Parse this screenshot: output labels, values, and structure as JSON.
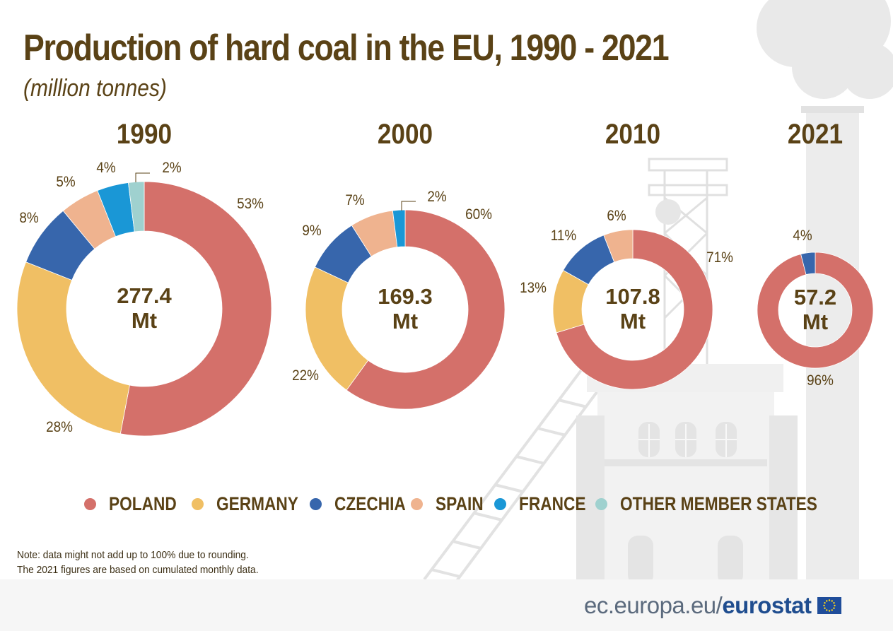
{
  "title": "Production of hard coal in the EU, 1990 - 2021",
  "subtitle": "(million tonnes)",
  "chart_data": {
    "type": "pie",
    "title": "Production of hard coal in the EU, 1990 - 2021",
    "subtitle": "(million tonnes)",
    "categories": [
      "POLAND",
      "GERMANY",
      "CZECHIA",
      "SPAIN",
      "FRANCE",
      "OTHER MEMBER STATES"
    ],
    "colors": [
      "#d4706a",
      "#f0bf64",
      "#3766ac",
      "#efb38f",
      "#1a97d6",
      "#9fd1cf"
    ],
    "charts": [
      {
        "year": "1990",
        "total": "277.4",
        "unit": "Mt",
        "values": [
          53,
          28,
          8,
          5,
          4,
          2
        ],
        "labels": [
          "53%",
          "28%",
          "8%",
          "5%",
          "4%",
          "2%"
        ]
      },
      {
        "year": "2000",
        "total": "169.3",
        "unit": "Mt",
        "values": [
          60,
          22,
          9,
          7,
          2,
          0
        ],
        "labels": [
          "60%",
          "22%",
          "9%",
          "7%",
          "2%",
          ""
        ]
      },
      {
        "year": "2010",
        "total": "107.8",
        "unit": "Mt",
        "values": [
          71,
          13,
          11,
          6,
          0,
          0
        ],
        "labels": [
          "71%",
          "13%",
          "11%",
          "6%",
          "",
          ""
        ]
      },
      {
        "year": "2021",
        "total": "57.2",
        "unit": "Mt",
        "values": [
          96,
          0,
          4,
          0,
          0,
          0
        ],
        "labels": [
          "96%",
          "",
          "4%",
          "",
          "",
          ""
        ]
      }
    ]
  },
  "legend": [
    "POLAND",
    "GERMANY",
    "CZECHIA",
    "SPAIN",
    "FRANCE",
    "OTHER MEMBER STATES"
  ],
  "note": {
    "line1": "Note: data might not add up to 100% due to rounding.",
    "line2": "The 2021 figures are based on cumulated monthly data."
  },
  "footer": {
    "url": "ec.europa.eu/",
    "brand": "eurostat"
  },
  "icons": {
    "eu_flag": "eu-flag-icon",
    "background": "coal-mine-illustration"
  }
}
